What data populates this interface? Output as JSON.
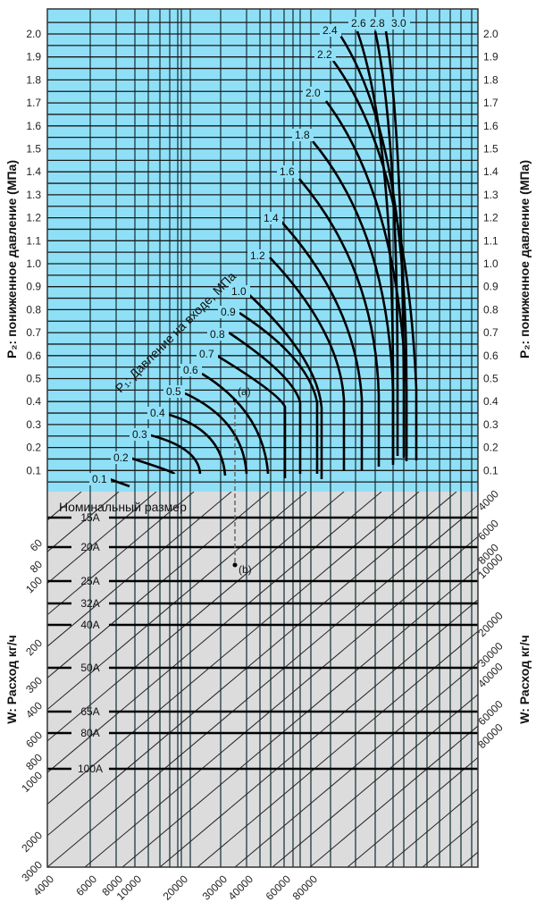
{
  "chart_data": {
    "type": "nomogram",
    "title": "",
    "colors": {
      "upper_bg": "#8fe0f7",
      "lower_bg": "#dcdcdc",
      "grid": "#1a1a1a",
      "curve": "#000000"
    },
    "upper_panel": {
      "ylabel": "P₂: пониженное давление (МПа)",
      "yticks": [
        "2.0",
        "1.9",
        "1.8",
        "1.7",
        "1.6",
        "1.5",
        "1.4",
        "1.3",
        "1.2",
        "1.1",
        "1.0",
        "0.9",
        "0.8",
        "0.7",
        "0.6",
        "0.5",
        "0.4",
        "0.3",
        "0.2",
        "0.1"
      ],
      "ylim": [
        0,
        2.1
      ],
      "curve_family_label": "P₁: Давление на входе, МПа",
      "curve_labels": [
        "0.1",
        "0.2",
        "0.3",
        "0.4",
        "0.5",
        "0.6",
        "0.7",
        "0.8",
        "0.9",
        "1.0",
        "1.2",
        "1.4",
        "1.6",
        "1.8",
        "2.0",
        "2.2",
        "2.4",
        "2.6",
        "2.8",
        "3.0"
      ],
      "marker_a": "(a)"
    },
    "lower_panel": {
      "title": "Номинальный размер",
      "nominal_sizes": [
        "15A",
        "20A",
        "25A",
        "32A",
        "40A",
        "50A",
        "65A",
        "80A",
        "100A"
      ],
      "ylabel": "W: Расход кг/ч",
      "left_ticks": [
        "60",
        "80",
        "100",
        "200",
        "300",
        "400",
        "600",
        "800",
        "1000",
        "2000",
        "3000"
      ],
      "right_ticks": [
        "4000",
        "6000",
        "8000",
        "10000",
        "20000",
        "30000",
        "40000",
        "60000",
        "80000"
      ],
      "bottom_ticks": [
        "4000",
        "6000",
        "8000",
        "10000",
        "20000",
        "30000",
        "40000",
        "60000",
        "80000"
      ],
      "marker_b": "(b)"
    },
    "grid": true,
    "legend": "none"
  }
}
